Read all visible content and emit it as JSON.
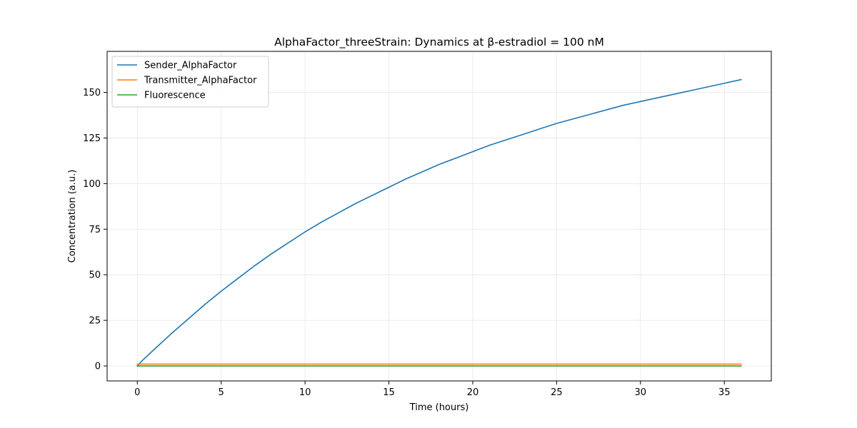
{
  "chart_data": {
    "type": "line",
    "title": "AlphaFactor_threeStrain: Dynamics at β-estradiol = 100 nM",
    "xlabel": "Time (hours)",
    "ylabel": "Concentration (a.u.)",
    "xlim": [
      -1.8,
      37.8
    ],
    "ylim": [
      -8.2,
      172.5
    ],
    "xticks": [
      0,
      5,
      10,
      15,
      20,
      25,
      30,
      35
    ],
    "yticks": [
      0,
      25,
      50,
      75,
      100,
      125,
      150
    ],
    "grid": true,
    "legend_position": "top-left",
    "series": [
      {
        "name": "Sender_AlphaFactor",
        "color": "#1f77b4",
        "x": [
          0,
          0.3,
          1,
          2,
          3,
          4,
          5,
          6,
          7,
          8,
          9,
          10,
          11,
          12,
          13,
          14,
          15,
          16,
          17,
          18,
          19,
          20,
          21,
          22,
          23,
          24,
          25,
          26,
          27,
          28,
          29,
          30,
          31,
          32,
          33,
          34,
          35,
          36
        ],
        "y": [
          0,
          3,
          9,
          17.5,
          25.5,
          33.5,
          41,
          48,
          55,
          61.5,
          67.5,
          73.5,
          79,
          84,
          89,
          93.5,
          98,
          102.5,
          106.5,
          110.5,
          114,
          117.5,
          121,
          124,
          127,
          130,
          133,
          135.5,
          138,
          140.5,
          143,
          145,
          147,
          149,
          151,
          153,
          155,
          157
        ]
      },
      {
        "name": "Transmitter_AlphaFactor",
        "color": "#ff7f0e",
        "x": [
          0,
          36
        ],
        "y": [
          1,
          1
        ]
      },
      {
        "name": "Fluorescence",
        "color": "#2ca02c",
        "x": [
          0,
          36
        ],
        "y": [
          0,
          0
        ]
      }
    ]
  }
}
